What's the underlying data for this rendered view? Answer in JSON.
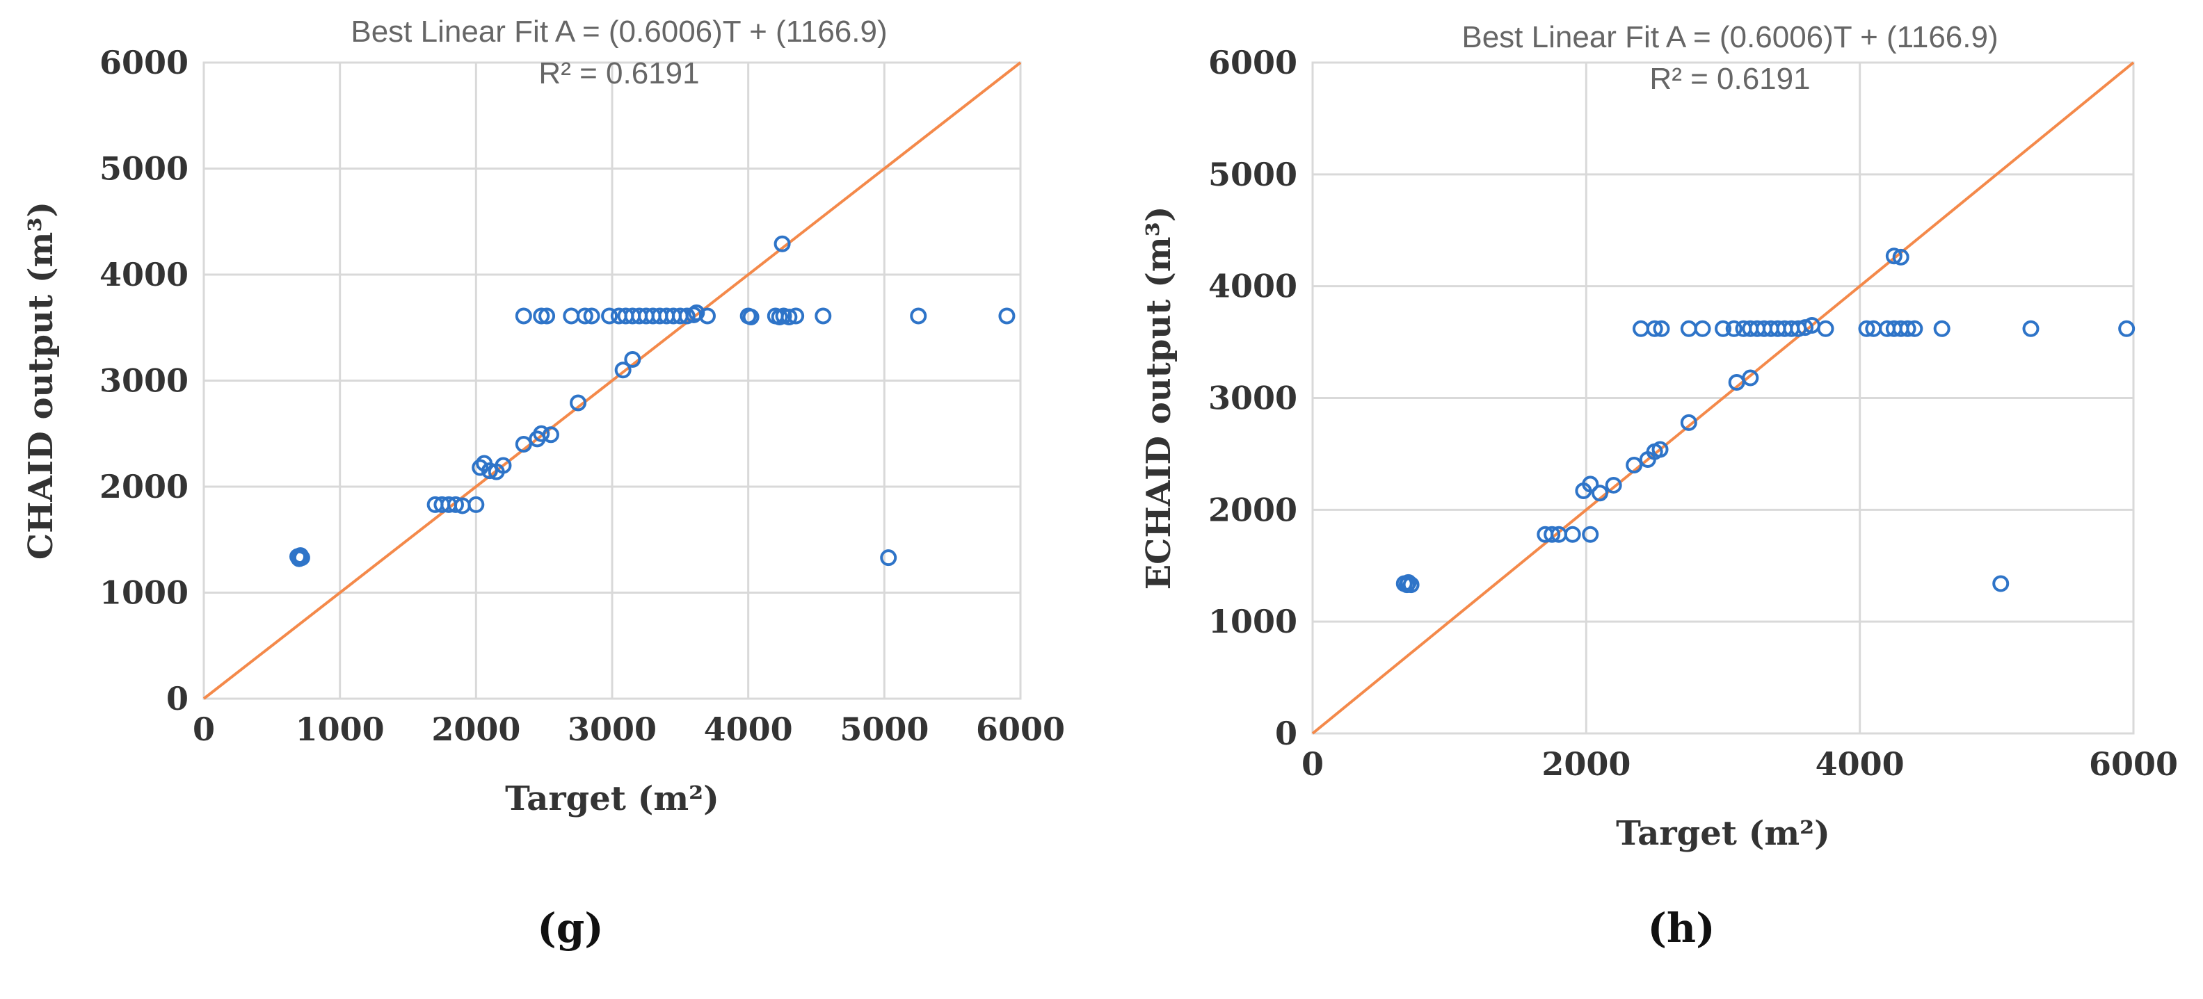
{
  "chart_data": [
    {
      "type": "scatter",
      "panel": "(g)",
      "title": "Best Linear Fit A = (0.6006)T + (1166.9)",
      "subtitle": "R² = 0.6191",
      "xlabel": "Target (m²)",
      "ylabel": "CHAID output (m³)",
      "xlim": [
        0,
        6000
      ],
      "ylim": [
        0,
        6000
      ],
      "xticks": [
        0,
        1000,
        2000,
        3000,
        4000,
        5000,
        6000
      ],
      "yticks": [
        0,
        1000,
        2000,
        3000,
        4000,
        5000,
        6000
      ],
      "grid": true,
      "fit_line": {
        "from": [
          0,
          0
        ],
        "to": [
          6000,
          6000
        ]
      },
      "colors": {
        "points": "#2e74c8",
        "line": "#f4894a",
        "grid": "#d9d9d9"
      },
      "series": [
        {
          "points": [
            [
              690,
              1340
            ],
            [
              700,
              1320
            ],
            [
              710,
              1350
            ],
            [
              720,
              1330
            ],
            [
              1700,
              1830
            ],
            [
              1750,
              1830
            ],
            [
              1800,
              1830
            ],
            [
              1850,
              1830
            ],
            [
              1900,
              1820
            ],
            [
              2000,
              1830
            ],
            [
              2030,
              2180
            ],
            [
              2060,
              2220
            ],
            [
              2100,
              2150
            ],
            [
              2150,
              2140
            ],
            [
              2200,
              2200
            ],
            [
              2350,
              2400
            ],
            [
              2450,
              2450
            ],
            [
              2480,
              2500
            ],
            [
              2550,
              2490
            ],
            [
              2750,
              2790
            ],
            [
              3080,
              3100
            ],
            [
              3150,
              3200
            ],
            [
              2350,
              3610
            ],
            [
              2480,
              3610
            ],
            [
              2520,
              3610
            ],
            [
              2700,
              3610
            ],
            [
              2800,
              3610
            ],
            [
              2850,
              3610
            ],
            [
              2980,
              3610
            ],
            [
              3050,
              3610
            ],
            [
              3100,
              3610
            ],
            [
              3150,
              3610
            ],
            [
              3200,
              3610
            ],
            [
              3250,
              3610
            ],
            [
              3300,
              3610
            ],
            [
              3350,
              3610
            ],
            [
              3400,
              3610
            ],
            [
              3450,
              3610
            ],
            [
              3500,
              3610
            ],
            [
              3550,
              3610
            ],
            [
              3600,
              3620
            ],
            [
              3620,
              3640
            ],
            [
              3700,
              3610
            ],
            [
              4000,
              3610
            ],
            [
              4020,
              3600
            ],
            [
              4200,
              3610
            ],
            [
              4230,
              3600
            ],
            [
              4260,
              3610
            ],
            [
              4300,
              3600
            ],
            [
              4350,
              3610
            ],
            [
              4550,
              3610
            ],
            [
              5250,
              3610
            ],
            [
              5900,
              3610
            ],
            [
              4250,
              4290
            ],
            [
              5030,
              1330
            ]
          ]
        }
      ]
    },
    {
      "type": "scatter",
      "panel": "(h)",
      "title": "Best Linear Fit A = (0.6006)T + (1166.9)",
      "subtitle": "R² = 0.6191",
      "xlabel": "Target (m²)",
      "ylabel": "ECHAID output (m³)",
      "xlim": [
        0,
        6000
      ],
      "ylim": [
        0,
        6000
      ],
      "xticks": [
        0,
        2000,
        4000,
        6000
      ],
      "yticks": [
        0,
        1000,
        2000,
        3000,
        4000,
        5000,
        6000
      ],
      "grid": true,
      "fit_line": {
        "from": [
          0,
          0
        ],
        "to": [
          6000,
          6000
        ]
      },
      "colors": {
        "points": "#2e74c8",
        "line": "#f4894a",
        "grid": "#d9d9d9"
      },
      "series": [
        {
          "points": [
            [
              670,
              1340
            ],
            [
              690,
              1330
            ],
            [
              700,
              1350
            ],
            [
              720,
              1330
            ],
            [
              1700,
              1780
            ],
            [
              1750,
              1780
            ],
            [
              1800,
              1780
            ],
            [
              1900,
              1780
            ],
            [
              2030,
              1780
            ],
            [
              1980,
              2170
            ],
            [
              2030,
              2230
            ],
            [
              2100,
              2150
            ],
            [
              2200,
              2220
            ],
            [
              2350,
              2400
            ],
            [
              2450,
              2450
            ],
            [
              2500,
              2520
            ],
            [
              2540,
              2540
            ],
            [
              2750,
              2780
            ],
            [
              3100,
              3140
            ],
            [
              3200,
              3180
            ],
            [
              2400,
              3620
            ],
            [
              2500,
              3620
            ],
            [
              2550,
              3620
            ],
            [
              2750,
              3620
            ],
            [
              2850,
              3620
            ],
            [
              3000,
              3620
            ],
            [
              3080,
              3620
            ],
            [
              3150,
              3620
            ],
            [
              3200,
              3620
            ],
            [
              3250,
              3620
            ],
            [
              3300,
              3620
            ],
            [
              3350,
              3620
            ],
            [
              3400,
              3620
            ],
            [
              3450,
              3620
            ],
            [
              3500,
              3620
            ],
            [
              3550,
              3620
            ],
            [
              3600,
              3630
            ],
            [
              3650,
              3650
            ],
            [
              3750,
              3620
            ],
            [
              4050,
              3620
            ],
            [
              4100,
              3620
            ],
            [
              4200,
              3620
            ],
            [
              4250,
              3620
            ],
            [
              4300,
              3620
            ],
            [
              4350,
              3620
            ],
            [
              4400,
              3620
            ],
            [
              4600,
              3620
            ],
            [
              5250,
              3620
            ],
            [
              5950,
              3620
            ],
            [
              4250,
              4270
            ],
            [
              4300,
              4260
            ],
            [
              5030,
              1340
            ]
          ]
        }
      ]
    }
  ]
}
